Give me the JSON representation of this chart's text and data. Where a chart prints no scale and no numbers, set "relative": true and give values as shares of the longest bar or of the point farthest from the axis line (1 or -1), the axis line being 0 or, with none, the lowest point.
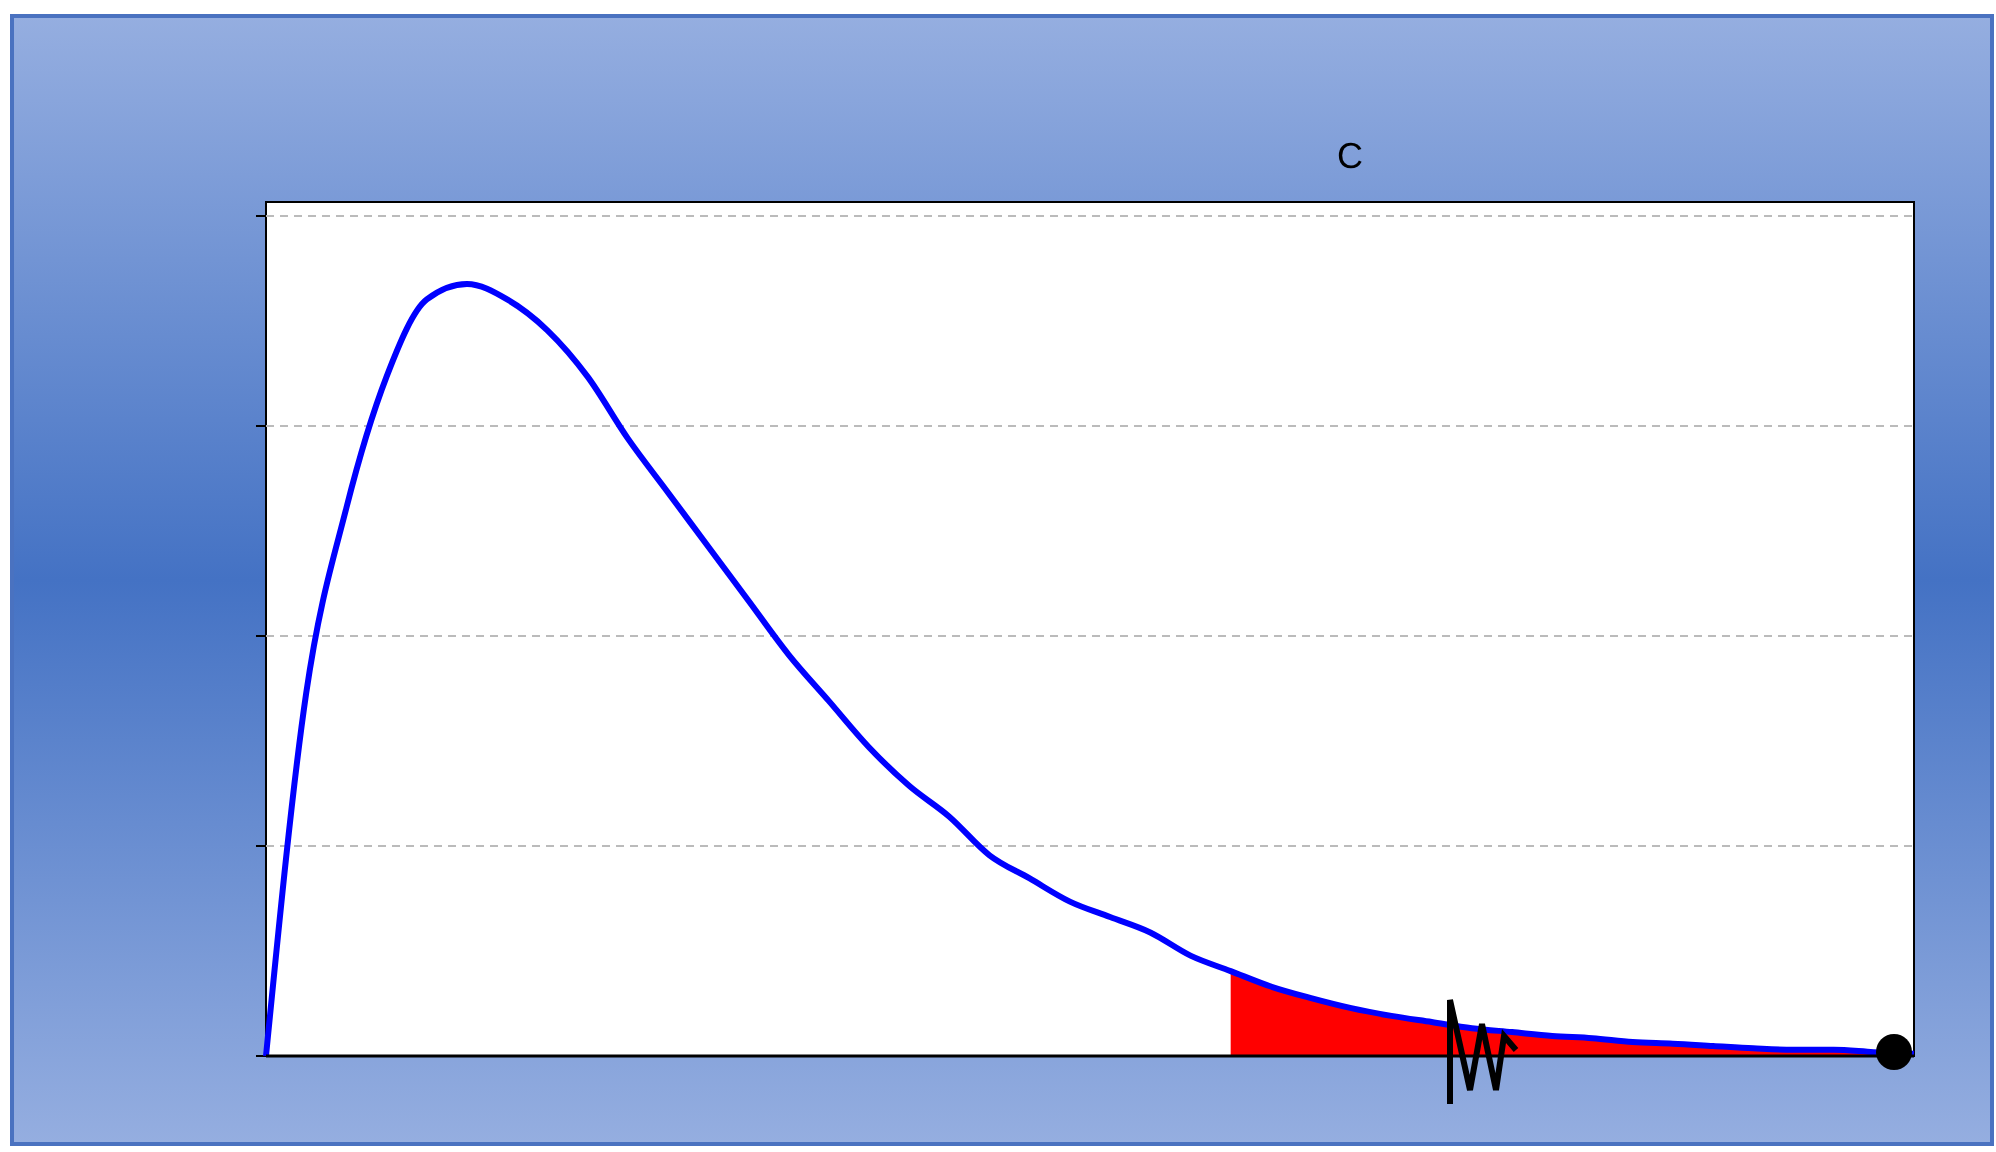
{
  "chart_data": {
    "type": "line",
    "title": "C",
    "relative": true,
    "grid": "y",
    "categories": [
      null,
      null,
      null,
      null,
      null,
      null,
      null,
      null,
      null,
      null,
      null,
      null,
      null,
      null,
      null,
      null,
      null,
      null,
      null,
      null,
      null,
      null,
      null,
      null,
      null,
      null,
      null,
      null,
      null,
      null,
      null,
      null,
      null,
      null,
      null,
      null,
      null,
      null,
      null,
      null,
      null,
      null
    ],
    "series": [
      {
        "type": "area",
        "color": "#ff0000",
        "values": [
          null,
          null,
          null,
          null,
          null,
          null,
          null,
          null,
          null,
          null,
          null,
          null,
          null,
          null,
          null,
          null,
          null,
          null,
          null,
          null,
          null,
          null,
          null,
          null,
          0.11,
          0.09,
          0.075,
          0.062,
          0.052,
          0.044,
          0.036,
          0.031,
          0.026,
          0.023,
          0.018,
          0.016,
          0.013,
          0.01,
          0.008,
          0.008,
          0.005,
          0.003
        ]
      },
      {
        "color": "#0000ff",
        "values": [
          0,
          0.47,
          0.71,
          0.88,
          0.98,
          1,
          0.98,
          0.94,
          0.88,
          0.8,
          0.73,
          0.66,
          0.59,
          0.52,
          0.46,
          0.4,
          0.35,
          0.31,
          0.26,
          0.23,
          0.2,
          0.18,
          0.16,
          0.13,
          0.11,
          0.09,
          0.075,
          0.062,
          0.052,
          0.044,
          0.036,
          0.031,
          0.026,
          0.023,
          0.018,
          0.016,
          0.013,
          0.01,
          0.008,
          0.008,
          0.005,
          0.003
        ]
      }
    ]
  }
}
